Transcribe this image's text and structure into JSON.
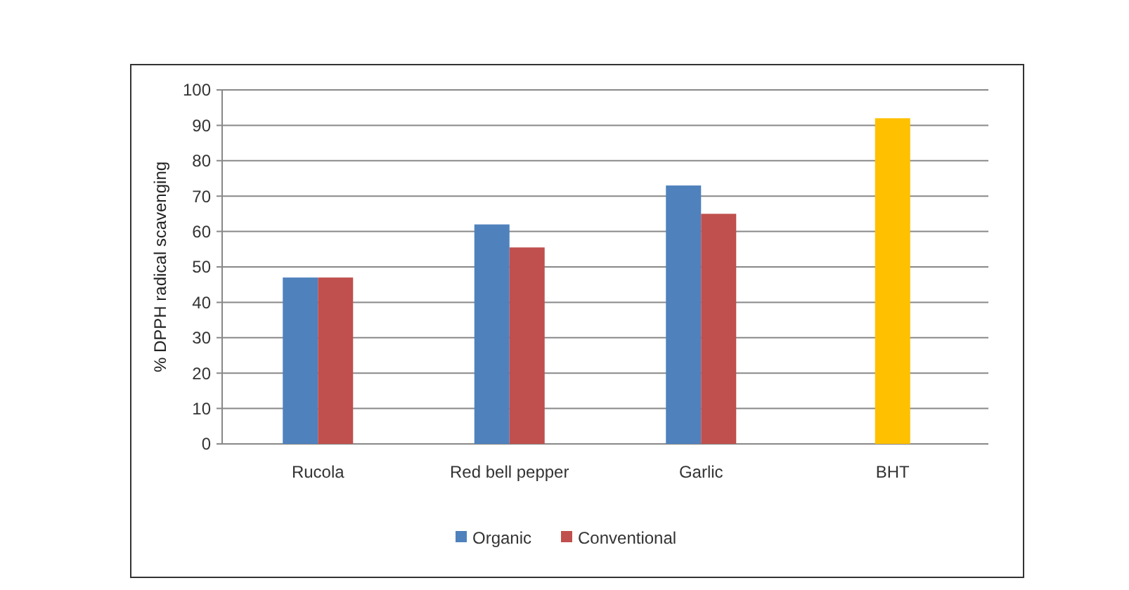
{
  "chart_data": {
    "type": "bar",
    "ylabel": "% DPPH radical scavenging",
    "categories": [
      "Rucola",
      "Red bell pepper",
      "Garlic",
      "BHT"
    ],
    "series": [
      {
        "name": "Organic",
        "color": "#4f81bd",
        "values": [
          47,
          62,
          73,
          null
        ]
      },
      {
        "name": "Conventional",
        "color": "#c0504d",
        "values": [
          47,
          55.5,
          65,
          null
        ]
      },
      {
        "color": "#ffc000",
        "values": [
          null,
          null,
          null,
          92
        ]
      }
    ],
    "ylim": [
      0,
      100
    ],
    "yticks": [
      0,
      10,
      20,
      30,
      40,
      50,
      60,
      70,
      80,
      90,
      100
    ],
    "grid": "y",
    "legend": "bottom"
  }
}
